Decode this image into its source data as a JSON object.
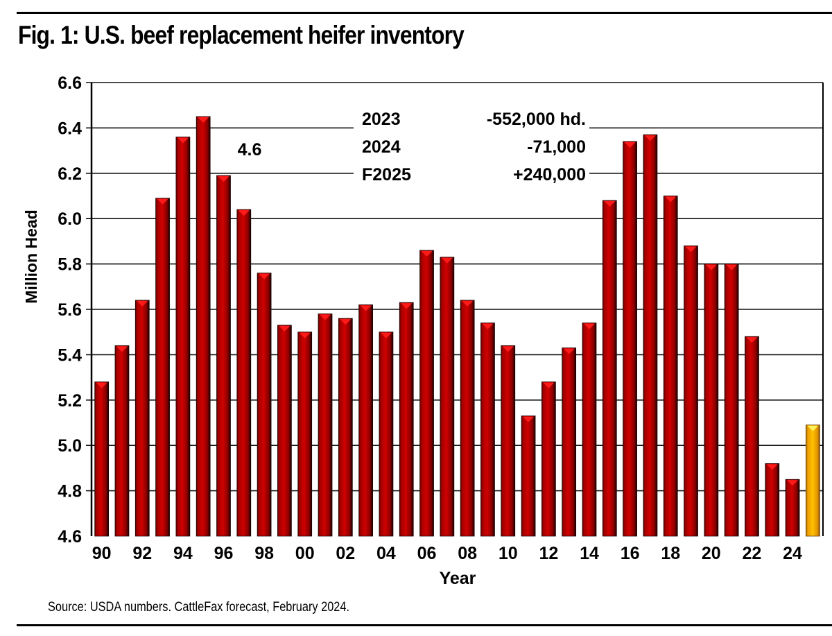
{
  "title": "Fig. 1: U.S. beef replacement heifer inventory",
  "source": "Source: USDA numbers. CattleFax forecast, February 2024.",
  "chart_data": {
    "type": "bar",
    "title": "Fig. 1: U.S. beef replacement heifer inventory",
    "xlabel": "Year",
    "ylabel": "Million Head",
    "ylim": [
      4.6,
      6.6
    ],
    "yticks": [
      "4.6",
      "4.8",
      "5.0",
      "5.2",
      "5.4",
      "5.6",
      "5.8",
      "6.0",
      "6.2",
      "6.4",
      "6.6"
    ],
    "grid": true,
    "categories": [
      "1990",
      "1991",
      "1992",
      "1993",
      "1994",
      "1995",
      "1996",
      "1997",
      "1998",
      "1999",
      "2000",
      "2001",
      "2002",
      "2003",
      "2004",
      "2005",
      "2006",
      "2007",
      "2008",
      "2009",
      "2010",
      "2011",
      "2012",
      "2013",
      "2014",
      "2015",
      "2016",
      "2017",
      "2018",
      "2019",
      "2020",
      "2021",
      "2022",
      "2023",
      "2024",
      "F2025"
    ],
    "xtick_labels": [
      "90",
      "92",
      "94",
      "96",
      "98",
      "00",
      "02",
      "04",
      "06",
      "08",
      "10",
      "12",
      "14",
      "16",
      "18",
      "20",
      "22",
      "24"
    ],
    "values": [
      5.28,
      5.44,
      5.64,
      6.09,
      6.36,
      6.45,
      6.19,
      6.04,
      5.76,
      5.53,
      5.5,
      5.58,
      5.56,
      5.62,
      5.5,
      5.63,
      5.86,
      5.83,
      5.64,
      5.54,
      5.44,
      5.13,
      5.28,
      5.43,
      5.54,
      6.08,
      6.34,
      6.37,
      6.1,
      5.88,
      5.8,
      5.8,
      5.48,
      4.92,
      4.85,
      5.09
    ],
    "forecast_index": 35,
    "colors": {
      "actual": "#c00000",
      "forecast": "#f5a800"
    },
    "annotations": [
      {
        "text": "4.6"
      },
      {
        "rows": [
          {
            "label": "2023",
            "value": "-552,000 hd."
          },
          {
            "label": "2024",
            "value": "-71,000"
          },
          {
            "label": "F2025",
            "value": "+240,000"
          }
        ]
      }
    ]
  }
}
